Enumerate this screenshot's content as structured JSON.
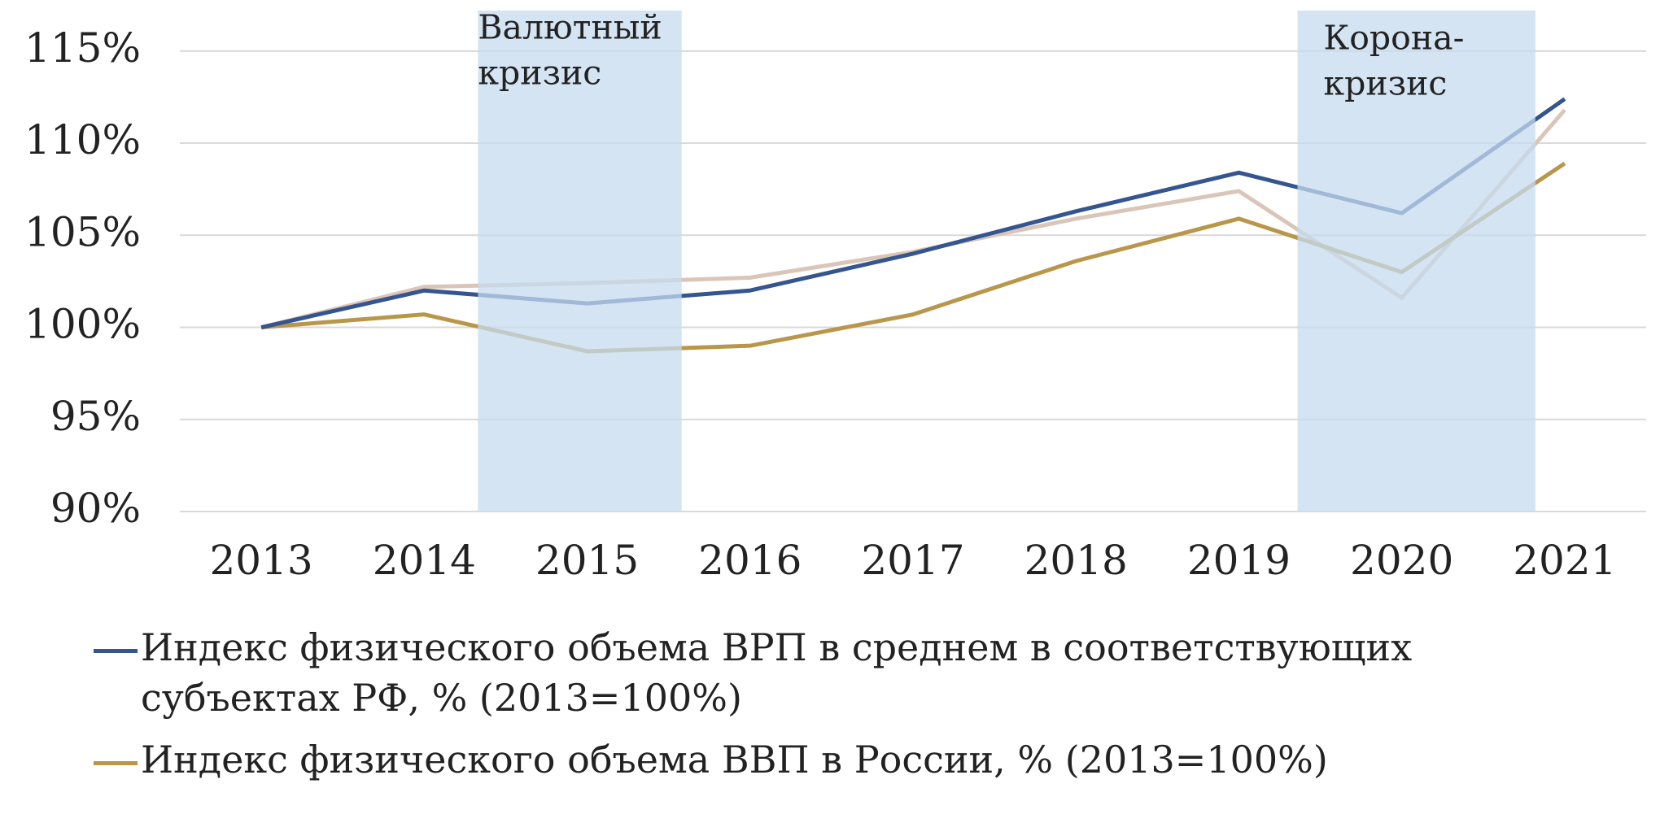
{
  "chart_data": {
    "type": "line",
    "x": [
      2013,
      2014,
      2015,
      2016,
      2017,
      2018,
      2019,
      2020,
      2021
    ],
    "xlim": [
      2012.5,
      2021.5
    ],
    "xticks": [
      2013,
      2014,
      2015,
      2016,
      2017,
      2018,
      2019,
      2020,
      2021
    ],
    "ylim": [
      90,
      117.2
    ],
    "yticks": [
      {
        "value": 90,
        "label": "90%"
      },
      {
        "value": 95,
        "label": "95%"
      },
      {
        "value": 100,
        "label": "100%"
      },
      {
        "value": 105,
        "label": "105%"
      },
      {
        "value": 110,
        "label": "110%"
      },
      {
        "value": 115,
        "label": "115%"
      }
    ],
    "grid": true,
    "series": [
      {
        "name": "Индекс физического объема ВРП в среднем в соответствующих субъектах РФ, % (2013=100%)",
        "color": "#34558f",
        "values": [
          100,
          102.0,
          101.3,
          102.0,
          104.0,
          106.3,
          108.4,
          106.2,
          112.4
        ]
      },
      {
        "name": "Индекс физического объема ВВП в России, % (2013=100%)",
        "color": "#b8974a",
        "values": [
          100,
          100.7,
          98.7,
          99.0,
          100.7,
          103.6,
          105.9,
          103.0,
          108.9
        ]
      },
      {
        "color": "#dac6b9",
        "values": [
          100,
          102.2,
          102.4,
          102.7,
          104.1,
          105.9,
          107.4,
          101.6,
          111.8
        ]
      }
    ],
    "annotations": [
      {
        "lines": [
          "Валютный",
          "кризис"
        ],
        "from": 2014.33,
        "to": 2015.58,
        "color": "#c5dbef"
      },
      {
        "lines": [
          "Корона-",
          "кризис"
        ],
        "from": 2019.36,
        "to": 2020.82,
        "color": "#c5dbef"
      }
    ]
  }
}
